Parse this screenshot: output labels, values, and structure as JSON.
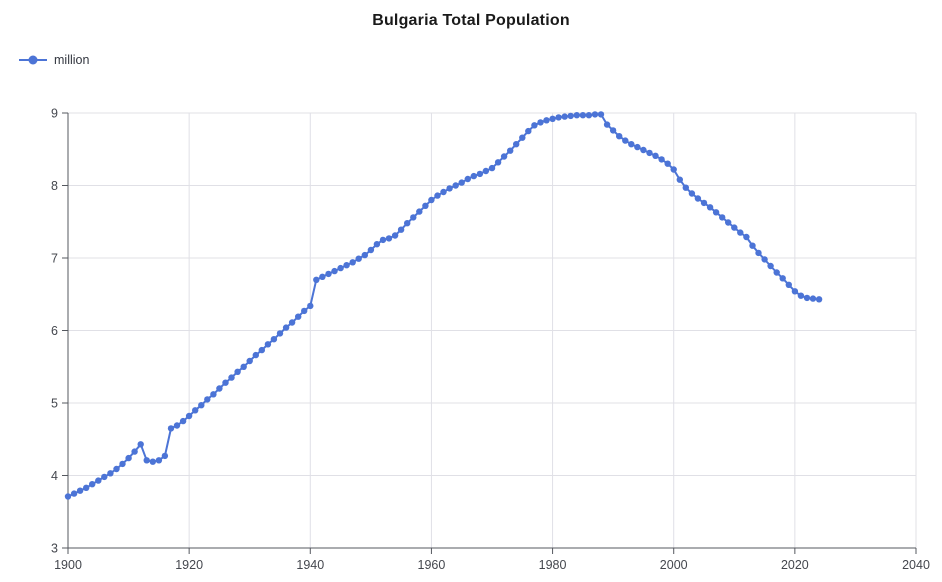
{
  "chart_data": {
    "type": "line",
    "title": "Bulgaria Total Population",
    "legend": [
      "million"
    ],
    "series": [
      {
        "name": "million",
        "x": [
          1900,
          1901,
          1902,
          1903,
          1904,
          1905,
          1906,
          1907,
          1908,
          1909,
          1910,
          1911,
          1912,
          1913,
          1914,
          1915,
          1916,
          1917,
          1918,
          1919,
          1920,
          1921,
          1922,
          1923,
          1924,
          1925,
          1926,
          1927,
          1928,
          1929,
          1930,
          1931,
          1932,
          1933,
          1934,
          1935,
          1936,
          1937,
          1938,
          1939,
          1940,
          1941,
          1942,
          1943,
          1944,
          1945,
          1946,
          1947,
          1948,
          1949,
          1950,
          1951,
          1952,
          1953,
          1954,
          1955,
          1956,
          1957,
          1958,
          1959,
          1960,
          1961,
          1962,
          1963,
          1964,
          1965,
          1966,
          1967,
          1968,
          1969,
          1970,
          1971,
          1972,
          1973,
          1974,
          1975,
          1976,
          1977,
          1978,
          1979,
          1980,
          1981,
          1982,
          1983,
          1984,
          1985,
          1986,
          1987,
          1988,
          1989,
          1990,
          1991,
          1992,
          1993,
          1994,
          1995,
          1996,
          1997,
          1998,
          1999,
          2000,
          2001,
          2002,
          2003,
          2004,
          2005,
          2006,
          2007,
          2008,
          2009,
          2010,
          2011,
          2012,
          2013,
          2014,
          2015,
          2016,
          2017,
          2018,
          2019,
          2020,
          2021,
          2022,
          2023,
          2024
        ],
        "values": [
          3.71,
          3.75,
          3.79,
          3.83,
          3.88,
          3.93,
          3.98,
          4.03,
          4.09,
          4.16,
          4.24,
          4.33,
          4.43,
          4.21,
          4.19,
          4.21,
          4.27,
          4.65,
          4.69,
          4.75,
          4.82,
          4.9,
          4.97,
          5.05,
          5.12,
          5.2,
          5.28,
          5.35,
          5.43,
          5.5,
          5.58,
          5.66,
          5.73,
          5.81,
          5.88,
          5.96,
          6.04,
          6.11,
          6.19,
          6.27,
          6.34,
          6.7,
          6.74,
          6.78,
          6.82,
          6.86,
          6.9,
          6.94,
          6.99,
          7.04,
          7.11,
          7.19,
          7.25,
          7.27,
          7.31,
          7.39,
          7.48,
          7.56,
          7.64,
          7.72,
          7.8,
          7.86,
          7.91,
          7.96,
          8.0,
          8.04,
          8.09,
          8.13,
          8.16,
          8.2,
          8.24,
          8.32,
          8.4,
          8.48,
          8.57,
          8.66,
          8.75,
          8.83,
          8.87,
          8.9,
          8.92,
          8.94,
          8.95,
          8.96,
          8.97,
          8.97,
          8.97,
          8.98,
          8.98,
          8.84,
          8.76,
          8.68,
          8.62,
          8.57,
          8.53,
          8.49,
          8.45,
          8.41,
          8.36,
          8.3,
          8.22,
          8.08,
          7.97,
          7.89,
          7.82,
          7.76,
          7.7,
          7.63,
          7.56,
          7.49,
          7.42,
          7.35,
          7.29,
          7.17,
          7.07,
          6.98,
          6.89,
          6.8,
          6.72,
          6.63,
          6.54,
          6.48,
          6.45,
          6.44,
          6.43
        ]
      }
    ],
    "xlabel": "",
    "ylabel": "",
    "xlim": [
      1900,
      2040
    ],
    "ylim": [
      3,
      9
    ],
    "x_ticks": [
      1900,
      1920,
      1940,
      1960,
      1980,
      2000,
      2020,
      2040
    ],
    "y_ticks": [
      3,
      4,
      5,
      6,
      7,
      8,
      9
    ],
    "grid": true,
    "legend_position": "top-left",
    "colors": {
      "series": "#4c74d6",
      "grid": "#e0e0e6",
      "axis": "#55585f",
      "label": "#44474e",
      "title": "#1a1a1a"
    }
  }
}
